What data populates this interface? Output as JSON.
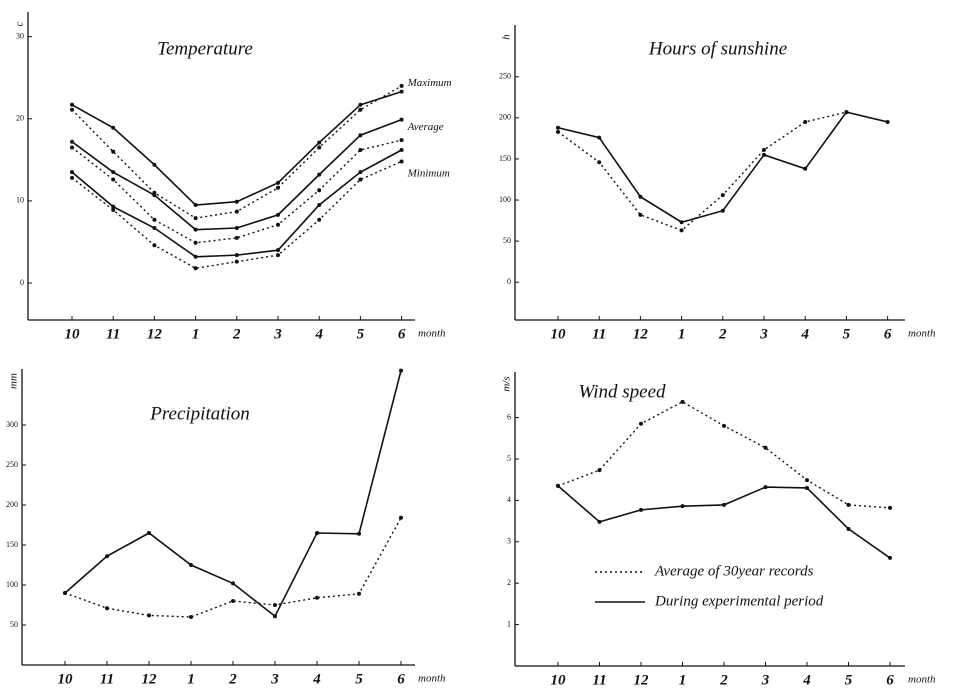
{
  "chart_data": [
    {
      "type": "line",
      "title": "Temperature",
      "y_label": "c",
      "x_label": "month",
      "legend": "line-end",
      "categories": [
        "10",
        "11",
        "12",
        "1",
        "2",
        "3",
        "4",
        "5",
        "6"
      ],
      "ylim": [
        -4.5,
        33
      ],
      "yticks": [
        0,
        10,
        20,
        30
      ],
      "series": [
        {
          "name": "Maximum",
          "color": "#111",
          "style": "solid",
          "values": [
            21.7,
            18.9,
            14.4,
            9.5,
            9.9,
            12.2,
            17.1,
            21.7,
            23.3
          ]
        },
        {
          "color": "#111",
          "style": "dotted",
          "values": [
            21.1,
            16.0,
            11.0,
            7.9,
            8.7,
            11.6,
            16.5,
            21.1,
            24.0
          ]
        },
        {
          "name": "Average",
          "color": "#111",
          "style": "solid",
          "values": [
            17.2,
            13.5,
            10.7,
            6.5,
            6.7,
            8.3,
            13.2,
            18.0,
            19.9
          ]
        },
        {
          "color": "#111",
          "style": "dotted",
          "values": [
            16.5,
            12.6,
            7.7,
            4.9,
            5.5,
            7.1,
            11.3,
            16.2,
            17.4
          ]
        },
        {
          "name": "Minimum",
          "color": "#111",
          "style": "solid",
          "values": [
            13.5,
            9.3,
            6.7,
            3.2,
            3.4,
            4.0,
            9.5,
            13.5,
            16.2
          ]
        },
        {
          "color": "#111",
          "style": "dotted",
          "values": [
            12.8,
            8.9,
            4.6,
            1.8,
            2.6,
            3.4,
            7.7,
            12.6,
            14.8
          ]
        }
      ]
    },
    {
      "type": "line",
      "title": "Hours of sunshine",
      "y_label": "h",
      "x_label": "month",
      "categories": [
        "10",
        "11",
        "12",
        "1",
        "2",
        "3",
        "4",
        "5",
        "6"
      ],
      "ylim": [
        -46,
        313
      ],
      "yticks": [
        0,
        50,
        100,
        150,
        200,
        250
      ],
      "series": [
        {
          "color": "#111",
          "style": "solid",
          "values": [
            188,
            176,
            104,
            73,
            87,
            155,
            138,
            207,
            195
          ]
        },
        {
          "color": "#111",
          "style": "dotted",
          "values": [
            183,
            146,
            82,
            63,
            106,
            161,
            195,
            207,
            null
          ]
        }
      ]
    },
    {
      "type": "line",
      "title": "Precipitation",
      "y_label": "mm",
      "x_label": "month",
      "categories": [
        "10",
        "11",
        "12",
        "1",
        "2",
        "3",
        "4",
        "5",
        "6"
      ],
      "ylim": [
        0,
        370
      ],
      "yticks": [
        50,
        100,
        150,
        200,
        250,
        300
      ],
      "series": [
        {
          "color": "#111",
          "style": "solid",
          "values": [
            90,
            136,
            165,
            125,
            102,
            61,
            165,
            164,
            368
          ]
        },
        {
          "color": "#111",
          "style": "dotted",
          "values": [
            90,
            71,
            62,
            60,
            80,
            75,
            84,
            89,
            184
          ]
        }
      ]
    },
    {
      "type": "line",
      "title": "Wind speed",
      "y_label": "m/s",
      "x_label": "month",
      "legend": "right",
      "categories": [
        "10",
        "11",
        "12",
        "1",
        "2",
        "3",
        "4",
        "5",
        "6"
      ],
      "ylim": [
        0,
        7.1
      ],
      "yticks": [
        1,
        2,
        3,
        4,
        5,
        6
      ],
      "series": [
        {
          "name": "Average of 30year records",
          "color": "#111",
          "style": "dotted",
          "values": [
            4.35,
            4.73,
            5.85,
            6.38,
            5.8,
            5.27,
            4.49,
            3.89,
            3.82
          ]
        },
        {
          "name": "During experimental period",
          "color": "#111",
          "style": "solid",
          "values": [
            4.35,
            3.48,
            3.77,
            3.86,
            3.89,
            4.32,
            4.3,
            3.31,
            2.61
          ]
        }
      ]
    }
  ]
}
